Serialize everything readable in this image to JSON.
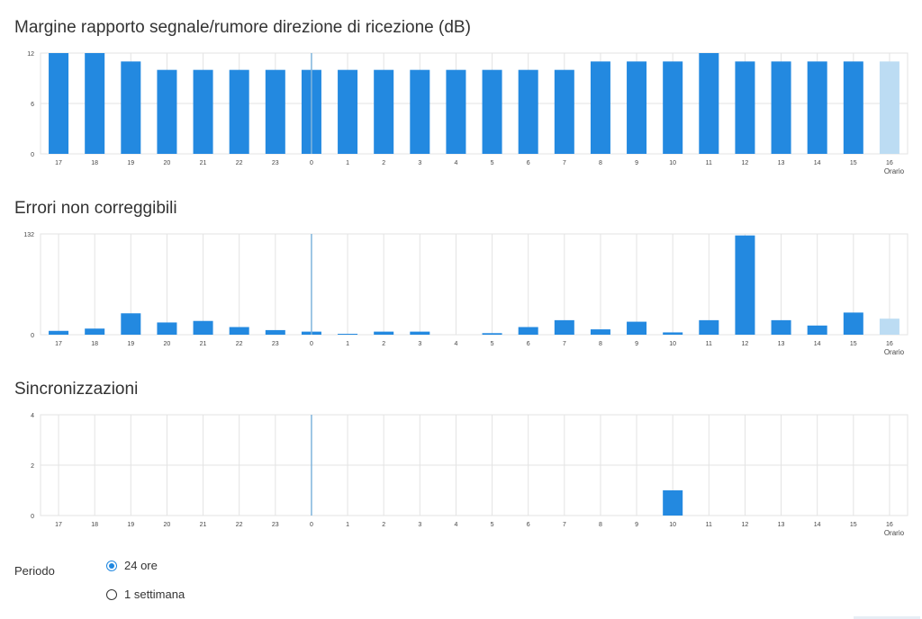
{
  "charts": [
    {
      "title": "Margine rapporto segnale/rumore direzione di ricezione (dB)"
    },
    {
      "title": "Errori non correggibili"
    },
    {
      "title": "Sincronizzazioni"
    }
  ],
  "chart_data": [
    {
      "type": "bar",
      "title": "Margine rapporto segnale/rumore direzione di ricezione (dB)",
      "xlabel": "Orario",
      "ylabel": "",
      "categories": [
        "17",
        "18",
        "19",
        "20",
        "21",
        "22",
        "23",
        "0",
        "1",
        "2",
        "3",
        "4",
        "5",
        "6",
        "7",
        "8",
        "9",
        "10",
        "11",
        "12",
        "13",
        "14",
        "15",
        "16"
      ],
      "values": [
        12,
        12,
        11,
        10,
        10,
        10,
        10,
        10,
        10,
        10,
        10,
        10,
        10,
        10,
        10,
        11,
        11,
        11,
        12,
        11,
        11,
        11,
        11,
        11
      ],
      "yticks": [
        "0",
        "6",
        "12"
      ],
      "ylim": [
        0,
        12
      ],
      "highlight_last": true,
      "day_divider_at": "0",
      "bar_color": "#2389e0",
      "last_bar_color": "#bcdcf3",
      "grid": true
    },
    {
      "type": "bar",
      "title": "Errori non correggibili",
      "xlabel": "Orario",
      "ylabel": "",
      "categories": [
        "17",
        "18",
        "19",
        "20",
        "21",
        "22",
        "23",
        "0",
        "1",
        "2",
        "3",
        "4",
        "5",
        "6",
        "7",
        "8",
        "9",
        "10",
        "11",
        "12",
        "13",
        "14",
        "15",
        "16"
      ],
      "values": [
        5,
        8,
        28,
        16,
        18,
        10,
        6,
        4,
        1,
        4,
        4,
        0,
        2,
        10,
        19,
        7,
        17,
        3,
        19,
        130,
        19,
        12,
        29,
        21
      ],
      "yticks": [
        "0",
        "132"
      ],
      "ylim": [
        0,
        132
      ],
      "highlight_last": true,
      "day_divider_at": "0",
      "bar_color": "#2389e0",
      "last_bar_color": "#bcdcf3",
      "grid": true
    },
    {
      "type": "bar",
      "title": "Sincronizzazioni",
      "xlabel": "Orario",
      "ylabel": "",
      "categories": [
        "17",
        "18",
        "19",
        "20",
        "21",
        "22",
        "23",
        "0",
        "1",
        "2",
        "3",
        "4",
        "5",
        "6",
        "7",
        "8",
        "9",
        "10",
        "11",
        "12",
        "13",
        "14",
        "15",
        "16"
      ],
      "values": [
        0,
        0,
        0,
        0,
        0,
        0,
        0,
        0,
        0,
        0,
        0,
        0,
        0,
        0,
        0,
        0,
        0,
        1,
        0,
        0,
        0,
        0,
        0,
        0
      ],
      "yticks": [
        "0",
        "2",
        "4"
      ],
      "ylim": [
        0,
        4
      ],
      "highlight_last": false,
      "day_divider_at": "0",
      "bar_color": "#2389e0",
      "last_bar_color": "#2389e0",
      "grid": true
    }
  ],
  "periodo": {
    "label": "Periodo",
    "options": [
      {
        "label": "24 ore",
        "selected": true
      },
      {
        "label": "1 settimana",
        "selected": false
      }
    ]
  },
  "colors": {
    "accent": "#1f87e0",
    "bar": "#2389e0",
    "bar_pending": "#bcdcf3",
    "grid": "#e3e3e3",
    "divider": "#7fb4dc",
    "text": "#333333"
  }
}
